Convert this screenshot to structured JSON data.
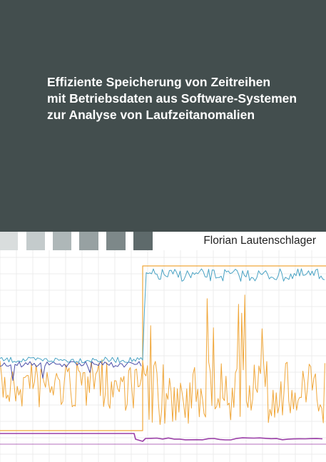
{
  "cover": {
    "title_lines": [
      "Effiziente Speicherung von Zeitreihen",
      "mit Betriebsdaten aus Software-Systemen",
      "zur Analyse von Laufzeitanomalien"
    ],
    "author": "Florian Lautenschlager",
    "colors": {
      "background": "#434e4e",
      "swatches": [
        "#d9dddd",
        "#c4cbcc",
        "#aeb7b8",
        "#97a1a2",
        "#7d8889",
        "#5e6a6b"
      ],
      "series_teal": "#4aa3c4",
      "series_orange": "#f0a73a",
      "series_purple": "#9b3fa8",
      "series_navy": "#4b4ea8"
    }
  }
}
